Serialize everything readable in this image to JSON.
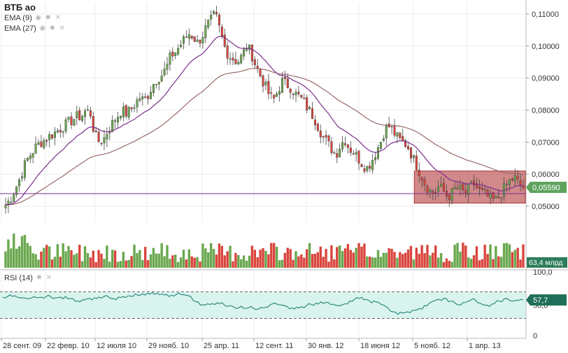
{
  "header": {
    "title": "ВТБ ао",
    "indicators": [
      {
        "label": "EMA (9)",
        "color": "#7b2f8f"
      },
      {
        "label": "EMA (27)",
        "color": "#9b6a6a"
      }
    ],
    "rsi_label": "RSI (14)"
  },
  "price_axis": {
    "ticks": [
      "0,11000",
      "0,10000",
      "0,09000",
      "0,08000",
      "0,07000",
      "0,06000",
      "0,05000"
    ],
    "tick_values": [
      0.11,
      0.1,
      0.09,
      0.08,
      0.07,
      0.06,
      0.05
    ],
    "range": [
      0.045,
      0.1135
    ],
    "current_price": "0,05590",
    "current_price_value": 0.0559,
    "current_price_color": "#5fa35f"
  },
  "volume_axis": {
    "current_volume": "63,4 млрд",
    "current_volume_color": "#2e7d5b"
  },
  "rsi_axis": {
    "ticks": [
      "100,0",
      "50,0",
      "0"
    ],
    "current_value": "57,7",
    "current_value_color": "#1e6e5a",
    "overbought": 70,
    "oversold": 30
  },
  "time_axis": {
    "labels": [
      "28 сент. 09",
      "22 февр. 10",
      "12 июля 10",
      "29 нояб. 10",
      "25 апр. 11",
      "12 сент. 11",
      "30 янв. 12",
      "18 июня 12",
      "5 нояб. 12",
      "1 апр. 13"
    ]
  },
  "colors": {
    "up": "#6aa84f",
    "down": "#d9453d",
    "ema9": "#7b2f8f",
    "ema27": "#9b6a6a",
    "rsi_line": "#2e8b7a",
    "rsi_band": "#d9f4ee",
    "highlight_fill": "#b84a4a",
    "grid": "#ececec"
  },
  "chart_data": {
    "type": "candlestick",
    "xlabel": "",
    "ylabel": "",
    "ylim": [
      0.045,
      0.1135
    ],
    "price_path": [
      0.0505,
      0.052,
      0.055,
      0.058,
      0.062,
      0.065,
      0.067,
      0.069,
      0.07,
      0.071,
      0.072,
      0.073,
      0.074,
      0.075,
      0.076,
      0.077,
      0.078,
      0.078,
      0.08,
      0.079,
      0.072,
      0.07,
      0.071,
      0.074,
      0.076,
      0.078,
      0.08,
      0.079,
      0.08,
      0.082,
      0.084,
      0.083,
      0.085,
      0.088,
      0.09,
      0.091,
      0.093,
      0.097,
      0.098,
      0.1,
      0.102,
      0.104,
      0.103,
      0.101,
      0.103,
      0.106,
      0.108,
      0.11,
      0.105,
      0.1,
      0.097,
      0.096,
      0.095,
      0.097,
      0.1,
      0.098,
      0.094,
      0.091,
      0.088,
      0.085,
      0.083,
      0.086,
      0.089,
      0.088,
      0.087,
      0.085,
      0.084,
      0.082,
      0.08,
      0.078,
      0.075,
      0.072,
      0.07,
      0.068,
      0.066,
      0.069,
      0.071,
      0.068,
      0.067,
      0.065,
      0.063,
      0.062,
      0.064,
      0.067,
      0.07,
      0.074,
      0.075,
      0.073,
      0.071,
      0.07,
      0.069,
      0.066,
      0.063,
      0.06,
      0.057,
      0.055,
      0.054,
      0.056,
      0.055,
      0.053,
      0.054,
      0.056,
      0.055,
      0.054,
      0.056,
      0.057,
      0.055,
      0.054,
      0.053,
      0.052,
      0.052,
      0.054,
      0.056,
      0.058,
      0.059,
      0.057,
      0.0559
    ],
    "ema_smoothing": [
      9,
      27
    ],
    "highlight_box": {
      "from_index": 92,
      "to_index": 116,
      "price_low": 0.051,
      "price_high": 0.061
    },
    "rsi": [
      62,
      63,
      63,
      62,
      61,
      60,
      61,
      61,
      62,
      63,
      62,
      61,
      62,
      63,
      60,
      56,
      55,
      58,
      60,
      61,
      62,
      63,
      62,
      60,
      62,
      63,
      64,
      63,
      65,
      67,
      68,
      69,
      68,
      67,
      66,
      65,
      66,
      66,
      65,
      63,
      55,
      50,
      50,
      51,
      51,
      52,
      50,
      49,
      47,
      46,
      45,
      46,
      45,
      44,
      46,
      47,
      52,
      51,
      50,
      48,
      46,
      47,
      48,
      49,
      51,
      53,
      55,
      54,
      51,
      50,
      49,
      52,
      56,
      59,
      60,
      58,
      57,
      56,
      54,
      50,
      45,
      40,
      36,
      38,
      40,
      42,
      43,
      44,
      49,
      55,
      58,
      57,
      60,
      56,
      52,
      50,
      54,
      57,
      58,
      53,
      50,
      48,
      52,
      56,
      59,
      58,
      56,
      57,
      57.7
    ]
  }
}
